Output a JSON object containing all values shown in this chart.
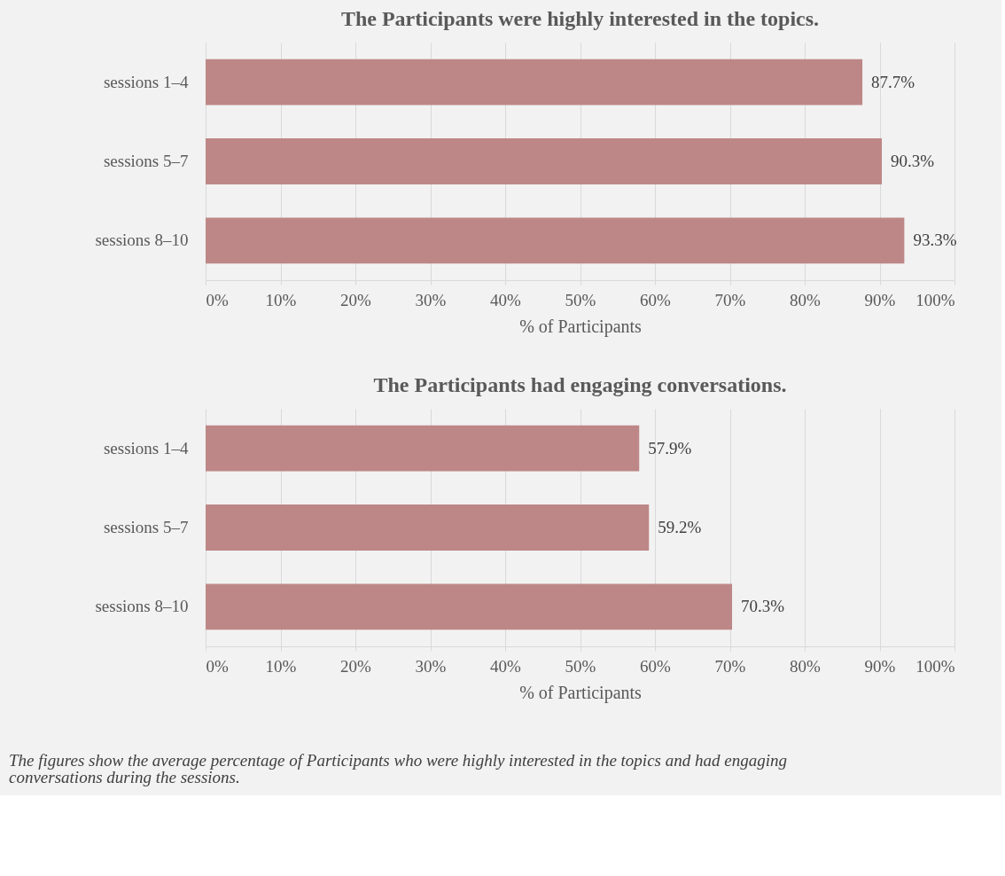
{
  "chart_data": [
    {
      "type": "bar",
      "orientation": "horizontal",
      "title": "The Participants were highly interested in the topics.",
      "xlabel": "% of Participants",
      "categories": [
        "sessions 1–4",
        "sessions 5–7",
        "sessions 8–10"
      ],
      "values": [
        87.7,
        90.3,
        93.3
      ],
      "value_labels": [
        "87.7%",
        "90.3%",
        "93.3%"
      ],
      "color": "#be8787",
      "xlim": [
        0,
        100
      ],
      "xticks": [
        {
          "value": 0,
          "label": "0%"
        },
        {
          "value": 10,
          "label": "10%"
        },
        {
          "value": 20,
          "label": "20%"
        },
        {
          "value": 30,
          "label": "30%"
        },
        {
          "value": 40,
          "label": "40%"
        },
        {
          "value": 50,
          "label": "50%"
        },
        {
          "value": 60,
          "label": "60%"
        },
        {
          "value": 70,
          "label": "70%"
        },
        {
          "value": 80,
          "label": "80%"
        },
        {
          "value": 90,
          "label": "90%"
        },
        {
          "value": 100,
          "label": "100%"
        }
      ],
      "grid": "x"
    },
    {
      "type": "bar",
      "orientation": "horizontal",
      "title": "The Participants had engaging conversations.",
      "xlabel": "% of Participants",
      "categories": [
        "sessions 1–4",
        "sessions 5–7",
        "sessions 8–10"
      ],
      "values": [
        57.9,
        59.2,
        70.3
      ],
      "value_labels": [
        "57.9%",
        "59.2%",
        "70.3%"
      ],
      "color": "#be8787",
      "xlim": [
        0,
        100
      ],
      "xticks": [
        {
          "value": 0,
          "label": "0%"
        },
        {
          "value": 10,
          "label": "10%"
        },
        {
          "value": 20,
          "label": "20%"
        },
        {
          "value": 30,
          "label": "30%"
        },
        {
          "value": 40,
          "label": "40%"
        },
        {
          "value": 50,
          "label": "50%"
        },
        {
          "value": 60,
          "label": "60%"
        },
        {
          "value": 70,
          "label": "70%"
        },
        {
          "value": 80,
          "label": "80%"
        },
        {
          "value": 90,
          "label": "90%"
        },
        {
          "value": 100,
          "label": "100%"
        }
      ],
      "grid": "x",
      "annotations": [
        "The figures show the average percentage of Participants who were highly interested in the topics and had engaging conversations during the sessions."
      ]
    }
  ]
}
